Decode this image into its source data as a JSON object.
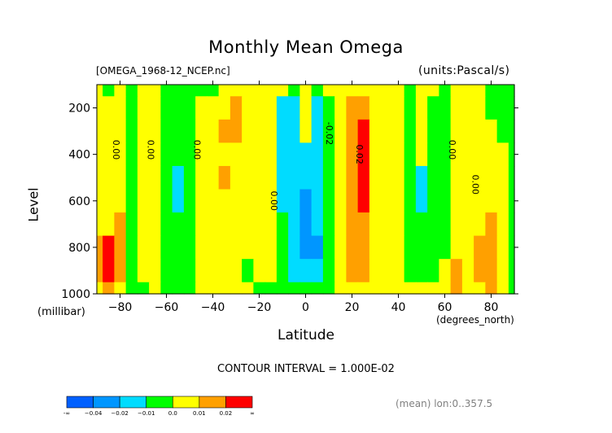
{
  "title": "Monthly Mean Omega",
  "file_label": "[OMEGA_1968-12_NCEP.nc]",
  "units_label": "(units:Pascal/s)",
  "contour_interval": "CONTOUR INTERVAL = 1.000E-02",
  "mean_label": "(mean) lon:0..357.5",
  "chart_data": {
    "type": "heatmap",
    "title": "Monthly Mean Omega",
    "xlabel": "Latitude",
    "xunits": "(degrees_north)",
    "ylabel": "Level",
    "yunits": "(millibar)",
    "xlim": [
      -90,
      90
    ],
    "ylim": [
      1000,
      100
    ],
    "x_ticks": [
      -80,
      -60,
      -40,
      -20,
      0,
      20,
      40,
      60,
      80
    ],
    "x_tick_labels": [
      "−80",
      "−60",
      "−40",
      "−20",
      "0",
      "20",
      "40",
      "60",
      "80"
    ],
    "y_ticks": [
      200,
      400,
      600,
      800,
      1000
    ],
    "y_tick_labels": [
      "200",
      "400",
      "600",
      "800",
      "1000"
    ],
    "x": [
      -90,
      -85,
      -80,
      -75,
      -70,
      -65,
      -60,
      -55,
      -50,
      -45,
      -40,
      -35,
      -30,
      -25,
      -20,
      -15,
      -10,
      -5,
      0,
      5,
      10,
      15,
      20,
      25,
      30,
      35,
      40,
      45,
      50,
      55,
      60,
      65,
      70,
      75,
      80,
      85,
      90
    ],
    "y": [
      100,
      200,
      300,
      400,
      500,
      600,
      700,
      800,
      900,
      1000
    ],
    "values": [
      [
        0.005,
        -0.005,
        0.005,
        -0.005,
        0.005,
        0.005,
        -0.005,
        -0.005,
        -0.005,
        -0.005,
        -0.005,
        0.005,
        0.005,
        0.005,
        0.005,
        0.005,
        0.005,
        -0.005,
        0.005,
        -0.005,
        0.005,
        0.005,
        0.005,
        0.005,
        0.005,
        0.005,
        0.005,
        -0.005,
        0.005,
        0.005,
        -0.005,
        0.005,
        0.005,
        0.005,
        -0.005,
        -0.005,
        -0.005
      ],
      [
        0.005,
        0.005,
        0.005,
        -0.005,
        0.005,
        0.005,
        -0.005,
        -0.005,
        -0.005,
        0.005,
        0.005,
        0.005,
        0.015,
        0.005,
        0.005,
        0.005,
        -0.015,
        -0.015,
        0.005,
        -0.015,
        -0.005,
        0.005,
        0.015,
        0.015,
        0.005,
        0.005,
        0.005,
        -0.005,
        0.005,
        -0.005,
        -0.005,
        0.005,
        0.005,
        0.005,
        -0.005,
        -0.005,
        -0.005
      ],
      [
        0.005,
        0.005,
        0.005,
        -0.005,
        0.005,
        0.005,
        -0.005,
        -0.005,
        -0.005,
        0.005,
        0.005,
        0.015,
        0.015,
        0.005,
        0.005,
        0.005,
        -0.015,
        -0.015,
        0.005,
        -0.015,
        -0.005,
        0.005,
        0.015,
        0.025,
        0.005,
        0.005,
        0.005,
        -0.005,
        0.005,
        -0.005,
        -0.005,
        0.005,
        0.005,
        0.005,
        0.005,
        -0.005,
        -0.005
      ],
      [
        0.005,
        0.005,
        0.005,
        -0.005,
        0.005,
        0.005,
        -0.005,
        -0.005,
        -0.005,
        0.005,
        0.005,
        0.005,
        0.005,
        0.005,
        0.005,
        0.005,
        -0.015,
        -0.015,
        -0.015,
        -0.015,
        -0.005,
        0.005,
        0.015,
        0.025,
        0.005,
        0.005,
        0.005,
        -0.005,
        0.005,
        -0.005,
        -0.005,
        0.005,
        0.005,
        0.005,
        0.005,
        0.005,
        -0.005
      ],
      [
        0.005,
        0.005,
        0.005,
        -0.005,
        0.005,
        0.005,
        -0.005,
        -0.015,
        -0.005,
        0.005,
        0.005,
        0.015,
        0.005,
        0.005,
        0.005,
        0.005,
        -0.015,
        -0.015,
        -0.015,
        -0.015,
        -0.005,
        0.005,
        0.015,
        0.025,
        0.005,
        0.005,
        0.005,
        -0.005,
        -0.015,
        -0.005,
        -0.005,
        0.005,
        0.005,
        0.005,
        0.005,
        0.005,
        -0.005
      ],
      [
        0.005,
        0.005,
        0.005,
        -0.005,
        0.005,
        0.005,
        -0.005,
        -0.015,
        -0.005,
        0.005,
        0.005,
        0.005,
        0.005,
        0.005,
        0.005,
        0.005,
        -0.015,
        -0.015,
        -0.025,
        -0.015,
        -0.005,
        0.005,
        0.015,
        0.025,
        0.005,
        0.005,
        0.005,
        -0.005,
        -0.015,
        -0.005,
        -0.005,
        0.005,
        0.005,
        0.005,
        0.005,
        0.005,
        -0.005
      ],
      [
        0.005,
        0.005,
        0.015,
        -0.005,
        0.005,
        0.005,
        -0.005,
        -0.005,
        -0.005,
        0.005,
        0.005,
        0.005,
        0.005,
        0.005,
        0.005,
        0.005,
        -0.005,
        -0.015,
        -0.025,
        -0.015,
        -0.005,
        0.005,
        0.015,
        0.015,
        0.005,
        0.005,
        0.005,
        -0.005,
        -0.005,
        -0.005,
        -0.005,
        0.005,
        0.005,
        0.005,
        0.015,
        0.005,
        -0.005
      ],
      [
        0.015,
        0.025,
        0.015,
        -0.005,
        0.005,
        0.005,
        -0.005,
        -0.005,
        -0.005,
        0.005,
        0.005,
        0.005,
        0.005,
        0.005,
        0.005,
        0.005,
        -0.005,
        -0.015,
        -0.025,
        -0.025,
        -0.005,
        0.005,
        0.015,
        0.015,
        0.005,
        0.005,
        0.005,
        -0.005,
        -0.005,
        -0.005,
        -0.005,
        0.005,
        0.005,
        0.015,
        0.015,
        0.005,
        -0.005
      ],
      [
        0.015,
        0.025,
        0.015,
        -0.005,
        0.005,
        0.005,
        -0.005,
        -0.005,
        -0.005,
        0.005,
        0.005,
        0.005,
        0.005,
        -0.005,
        0.005,
        0.005,
        -0.005,
        -0.015,
        -0.015,
        -0.015,
        -0.005,
        0.005,
        0.015,
        0.015,
        0.005,
        0.005,
        0.005,
        -0.005,
        -0.005,
        -0.005,
        0.005,
        0.015,
        0.005,
        0.015,
        0.015,
        0.005,
        -0.005
      ],
      [
        0.005,
        0.015,
        0.005,
        -0.005,
        -0.005,
        0.005,
        -0.005,
        -0.005,
        -0.005,
        0.005,
        0.005,
        0.005,
        0.005,
        0.005,
        -0.005,
        -0.005,
        -0.005,
        -0.005,
        -0.005,
        -0.005,
        -0.005,
        0.005,
        0.005,
        0.005,
        0.005,
        0.005,
        0.005,
        0.005,
        0.005,
        0.005,
        0.005,
        0.015,
        0.005,
        0.005,
        0.015,
        0.005,
        -0.005
      ]
    ],
    "contour_labels": [
      {
        "text": "0.00",
        "x": -83,
        "y": 380
      },
      {
        "text": "0.00",
        "x": -68,
        "y": 380
      },
      {
        "text": "0.00",
        "x": -48,
        "y": 380
      },
      {
        "text": "0.00",
        "x": -15,
        "y": 600
      },
      {
        "text": "-0.02",
        "x": 9,
        "y": 310
      },
      {
        "text": "0.02",
        "x": 22,
        "y": 400
      },
      {
        "text": "0.00",
        "x": 62,
        "y": 380
      },
      {
        "text": "0.00",
        "x": 72,
        "y": 530
      }
    ],
    "colorbar": {
      "labels": [
        "-∞",
        "−0.04",
        "−0.02",
        "−0.01",
        "0.0",
        "0.01",
        "0.02",
        "∞"
      ],
      "colors": [
        "#0060ff",
        "#0096ff",
        "#00dcff",
        "#00ff00",
        "#ffff00",
        "#ffa000",
        "#ff0000"
      ]
    },
    "color_bins": [
      {
        "min": -0.03,
        "max": -0.02,
        "color": "#0096ff"
      },
      {
        "min": -0.02,
        "max": -0.01,
        "color": "#00dcff"
      },
      {
        "min": -0.01,
        "max": 0.0,
        "color": "#00ff00"
      },
      {
        "min": 0.0,
        "max": 0.01,
        "color": "#ffff00"
      },
      {
        "min": 0.01,
        "max": 0.02,
        "color": "#ffa000"
      },
      {
        "min": 0.02,
        "max": 0.03,
        "color": "#ff0000"
      }
    ]
  }
}
